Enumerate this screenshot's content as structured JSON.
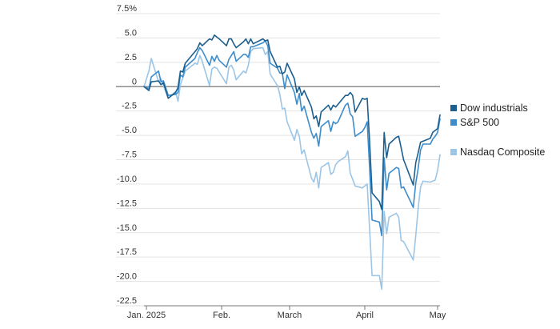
{
  "chart_data": {
    "type": "line",
    "ylim": [
      -22.5,
      7.5
    ],
    "y_ticks": [
      {
        "value": 7.5,
        "label": "7.5%"
      },
      {
        "value": 5.0,
        "label": "5.0"
      },
      {
        "value": 2.5,
        "label": "2.5"
      },
      {
        "value": 0,
        "label": "0"
      },
      {
        "value": -2.5,
        "label": "-2.5"
      },
      {
        "value": -5.0,
        "label": "-5.0"
      },
      {
        "value": -7.5,
        "label": "-7.5"
      },
      {
        "value": -10.0,
        "label": "-10.0"
      },
      {
        "value": -12.5,
        "label": "-12.5"
      },
      {
        "value": -15.0,
        "label": "-15.0"
      },
      {
        "value": -17.5,
        "label": "-17.5"
      },
      {
        "value": -20.0,
        "label": "-20.0"
      },
      {
        "value": -22.5,
        "label": "-22.5"
      }
    ],
    "x_range": [
      "2024-12-31",
      "2025-05-02"
    ],
    "x_ticks": [
      {
        "date": "2025-01-01",
        "label": "Jan. 2025"
      },
      {
        "date": "2025-02-01",
        "label": "Feb."
      },
      {
        "date": "2025-03-01",
        "label": "March"
      },
      {
        "date": "2025-04-01",
        "label": "April"
      },
      {
        "date": "2025-05-01",
        "label": "May"
      }
    ],
    "grid": "horizontal",
    "zero_line": true,
    "legend_position": "right",
    "series": [
      {
        "name": "Dow industrials",
        "color": "#1c5f8e",
        "points": [
          [
            "2024-12-31",
            0
          ],
          [
            "2025-01-02",
            -0.4
          ],
          [
            "2025-01-03",
            0.5
          ],
          [
            "2025-01-06",
            0.6
          ],
          [
            "2025-01-07",
            0.2
          ],
          [
            "2025-01-08",
            0.4
          ],
          [
            "2025-01-10",
            -1.2
          ],
          [
            "2025-01-13",
            -0.6
          ],
          [
            "2025-01-14",
            -0.1
          ],
          [
            "2025-01-15",
            1.6
          ],
          [
            "2025-01-16",
            1.5
          ],
          [
            "2025-01-17",
            2.4
          ],
          [
            "2025-01-21",
            3.6
          ],
          [
            "2025-01-22",
            3.9
          ],
          [
            "2025-01-23",
            4.5
          ],
          [
            "2025-01-24",
            4.2
          ],
          [
            "2025-01-27",
            4.9
          ],
          [
            "2025-01-28",
            4.8
          ],
          [
            "2025-01-29",
            5.3
          ],
          [
            "2025-01-30",
            5.1
          ],
          [
            "2025-01-31",
            4.9
          ],
          [
            "2025-02-03",
            4.2
          ],
          [
            "2025-02-04",
            4.9
          ],
          [
            "2025-02-05",
            4.9
          ],
          [
            "2025-02-06",
            4.4
          ],
          [
            "2025-02-07",
            4.0
          ],
          [
            "2025-02-10",
            4.6
          ],
          [
            "2025-02-11",
            4.9
          ],
          [
            "2025-02-12",
            4.4
          ],
          [
            "2025-02-13",
            4.9
          ],
          [
            "2025-02-14",
            4.4
          ],
          [
            "2025-02-18",
            4.9
          ],
          [
            "2025-02-19",
            4.7
          ],
          [
            "2025-02-20",
            4.8
          ],
          [
            "2025-02-21",
            3.6
          ],
          [
            "2025-02-24",
            2.0
          ],
          [
            "2025-02-25",
            2.1
          ],
          [
            "2025-02-26",
            1.3
          ],
          [
            "2025-02-27",
            1.5
          ],
          [
            "2025-02-28",
            2.4
          ],
          [
            "2025-03-03",
            0.8
          ],
          [
            "2025-03-04",
            -0.6
          ],
          [
            "2025-03-05",
            0.0
          ],
          [
            "2025-03-06",
            -0.9
          ],
          [
            "2025-03-07",
            -0.4
          ],
          [
            "2025-03-10",
            -2.1
          ],
          [
            "2025-03-11",
            -3.3
          ],
          [
            "2025-03-12",
            -3.0
          ],
          [
            "2025-03-13",
            -4.1
          ],
          [
            "2025-03-14",
            -2.6
          ],
          [
            "2025-03-17",
            -1.9
          ],
          [
            "2025-03-18",
            -2.4
          ],
          [
            "2025-03-19",
            -1.9
          ],
          [
            "2025-03-20",
            -2.1
          ],
          [
            "2025-03-21",
            -1.8
          ],
          [
            "2025-03-24",
            -0.9
          ],
          [
            "2025-03-25",
            -0.9
          ],
          [
            "2025-03-26",
            -0.6
          ],
          [
            "2025-03-27",
            -0.9
          ],
          [
            "2025-03-28",
            -2.6
          ],
          [
            "2025-03-31",
            -1.2
          ],
          [
            "2025-04-01",
            -1.3
          ],
          [
            "2025-04-02",
            -1.2
          ],
          [
            "2025-04-03",
            -5.6
          ],
          [
            "2025-04-04",
            -10.9
          ],
          [
            "2025-04-07",
            -11.8
          ],
          [
            "2025-04-08",
            -12.6
          ],
          [
            "2025-04-09",
            -4.7
          ],
          [
            "2025-04-10",
            -7.3
          ],
          [
            "2025-04-11",
            -5.9
          ],
          [
            "2025-04-14",
            -5.2
          ],
          [
            "2025-04-15",
            -5.1
          ],
          [
            "2025-04-16",
            -6.3
          ],
          [
            "2025-04-17",
            -7.5
          ],
          [
            "2025-04-21",
            -10.1
          ],
          [
            "2025-04-22",
            -7.8
          ],
          [
            "2025-04-23",
            -6.8
          ],
          [
            "2025-04-24",
            -5.7
          ],
          [
            "2025-04-25",
            -5.6
          ],
          [
            "2025-04-28",
            -5.3
          ],
          [
            "2025-04-29",
            -4.7
          ],
          [
            "2025-04-30",
            -4.5
          ],
          [
            "2025-05-01",
            -4.3
          ],
          [
            "2025-05-02",
            -2.9
          ]
        ]
      },
      {
        "name": "S&P 500",
        "color": "#3d8ccb",
        "points": [
          [
            "2024-12-31",
            0
          ],
          [
            "2025-01-02",
            -0.2
          ],
          [
            "2025-01-03",
            1.0
          ],
          [
            "2025-01-06",
            1.6
          ],
          [
            "2025-01-07",
            0.5
          ],
          [
            "2025-01-08",
            0.6
          ],
          [
            "2025-01-10",
            -0.9
          ],
          [
            "2025-01-13",
            -0.8
          ],
          [
            "2025-01-14",
            -0.6
          ],
          [
            "2025-01-15",
            1.2
          ],
          [
            "2025-01-16",
            1.0
          ],
          [
            "2025-01-17",
            2.0
          ],
          [
            "2025-01-21",
            2.9
          ],
          [
            "2025-01-22",
            3.5
          ],
          [
            "2025-01-23",
            4.0
          ],
          [
            "2025-01-24",
            3.7
          ],
          [
            "2025-01-27",
            2.2
          ],
          [
            "2025-01-28",
            3.1
          ],
          [
            "2025-01-29",
            2.6
          ],
          [
            "2025-01-30",
            3.2
          ],
          [
            "2025-01-31",
            2.7
          ],
          [
            "2025-02-03",
            2.0
          ],
          [
            "2025-02-04",
            2.8
          ],
          [
            "2025-02-05",
            3.2
          ],
          [
            "2025-02-06",
            3.6
          ],
          [
            "2025-02-07",
            2.6
          ],
          [
            "2025-02-10",
            3.3
          ],
          [
            "2025-02-11",
            3.3
          ],
          [
            "2025-02-12",
            3.0
          ],
          [
            "2025-02-13",
            4.1
          ],
          [
            "2025-02-14",
            4.1
          ],
          [
            "2025-02-18",
            4.5
          ],
          [
            "2025-02-19",
            4.7
          ],
          [
            "2025-02-20",
            4.2
          ],
          [
            "2025-02-21",
            2.4
          ],
          [
            "2025-02-24",
            1.9
          ],
          [
            "2025-02-25",
            1.4
          ],
          [
            "2025-02-26",
            1.4
          ],
          [
            "2025-02-27",
            -0.2
          ],
          [
            "2025-02-28",
            1.2
          ],
          [
            "2025-03-03",
            -0.6
          ],
          [
            "2025-03-04",
            -1.8
          ],
          [
            "2025-03-05",
            -0.7
          ],
          [
            "2025-03-06",
            -2.5
          ],
          [
            "2025-03-07",
            -2.0
          ],
          [
            "2025-03-10",
            -4.7
          ],
          [
            "2025-03-11",
            -5.3
          ],
          [
            "2025-03-12",
            -4.8
          ],
          [
            "2025-03-13",
            -6.1
          ],
          [
            "2025-03-14",
            -4.1
          ],
          [
            "2025-03-17",
            -3.5
          ],
          [
            "2025-03-18",
            -4.6
          ],
          [
            "2025-03-19",
            -3.6
          ],
          [
            "2025-03-20",
            -3.8
          ],
          [
            "2025-03-21",
            -3.6
          ],
          [
            "2025-03-24",
            -1.9
          ],
          [
            "2025-03-25",
            -1.7
          ],
          [
            "2025-03-26",
            -2.8
          ],
          [
            "2025-03-27",
            -3.1
          ],
          [
            "2025-03-28",
            -5.1
          ],
          [
            "2025-03-31",
            -4.6
          ],
          [
            "2025-04-01",
            -4.2
          ],
          [
            "2025-04-02",
            -3.6
          ],
          [
            "2025-04-03",
            -8.4
          ],
          [
            "2025-04-04",
            -13.7
          ],
          [
            "2025-04-07",
            -13.9
          ],
          [
            "2025-04-08",
            -15.3
          ],
          [
            "2025-04-09",
            -7.3
          ],
          [
            "2025-04-10",
            -10.6
          ],
          [
            "2025-04-11",
            -8.9
          ],
          [
            "2025-04-14",
            -8.3
          ],
          [
            "2025-04-15",
            -8.4
          ],
          [
            "2025-04-16",
            -10.4
          ],
          [
            "2025-04-17",
            -10.3
          ],
          [
            "2025-04-21",
            -12.4
          ],
          [
            "2025-04-22",
            -9.9
          ],
          [
            "2025-04-23",
            -8.4
          ],
          [
            "2025-04-24",
            -6.5
          ],
          [
            "2025-04-25",
            -5.9
          ],
          [
            "2025-04-28",
            -5.9
          ],
          [
            "2025-04-29",
            -5.4
          ],
          [
            "2025-04-30",
            -5.1
          ],
          [
            "2025-05-01",
            -4.7
          ],
          [
            "2025-05-02",
            -3.3
          ]
        ]
      },
      {
        "name": "Nasdaq Composite",
        "color": "#9cc5e6",
        "points": [
          [
            "2024-12-31",
            0
          ],
          [
            "2025-01-02",
            1.6
          ],
          [
            "2025-01-03",
            2.9
          ],
          [
            "2025-01-06",
            0.5
          ],
          [
            "2025-01-07",
            0.8
          ],
          [
            "2025-01-08",
            0.1
          ],
          [
            "2025-01-10",
            -1.2
          ],
          [
            "2025-01-13",
            -0.5
          ],
          [
            "2025-01-14",
            -1.5
          ],
          [
            "2025-01-15",
            0.2
          ],
          [
            "2025-01-16",
            0.9
          ],
          [
            "2025-01-17",
            1.6
          ],
          [
            "2025-01-21",
            2.4
          ],
          [
            "2025-01-22",
            2.3
          ],
          [
            "2025-01-23",
            3.2
          ],
          [
            "2025-01-24",
            2.6
          ],
          [
            "2025-01-27",
            0.1
          ],
          [
            "2025-01-28",
            1.8
          ],
          [
            "2025-01-29",
            2.0
          ],
          [
            "2025-01-30",
            1.9
          ],
          [
            "2025-01-31",
            1.5
          ],
          [
            "2025-02-03",
            0.3
          ],
          [
            "2025-02-04",
            2.0
          ],
          [
            "2025-02-05",
            2.2
          ],
          [
            "2025-02-06",
            1.7
          ],
          [
            "2025-02-07",
            0.7
          ],
          [
            "2025-02-10",
            1.6
          ],
          [
            "2025-02-11",
            1.4
          ],
          [
            "2025-02-12",
            2.2
          ],
          [
            "2025-02-13",
            3.6
          ],
          [
            "2025-02-14",
            3.9
          ],
          [
            "2025-02-18",
            4.0
          ],
          [
            "2025-02-19",
            3.3
          ],
          [
            "2025-02-20",
            3.6
          ],
          [
            "2025-02-21",
            1.3
          ],
          [
            "2025-02-24",
            0.1
          ],
          [
            "2025-02-25",
            -0.8
          ],
          [
            "2025-02-26",
            -2.3
          ],
          [
            "2025-02-27",
            -2.2
          ],
          [
            "2025-02-28",
            -3.6
          ],
          [
            "2025-03-03",
            -5.5
          ],
          [
            "2025-03-04",
            -4.4
          ],
          [
            "2025-03-05",
            -5.1
          ],
          [
            "2025-03-06",
            -6.9
          ],
          [
            "2025-03-07",
            -6.5
          ],
          [
            "2025-03-10",
            -9.4
          ],
          [
            "2025-03-11",
            -9.8
          ],
          [
            "2025-03-12",
            -8.8
          ],
          [
            "2025-03-13",
            -10.4
          ],
          [
            "2025-03-14",
            -8.3
          ],
          [
            "2025-03-17",
            -7.8
          ],
          [
            "2025-03-18",
            -9.0
          ],
          [
            "2025-03-19",
            -8.8
          ],
          [
            "2025-03-20",
            -8.0
          ],
          [
            "2025-03-21",
            -7.7
          ],
          [
            "2025-03-24",
            -7.2
          ],
          [
            "2025-03-25",
            -6.6
          ],
          [
            "2025-03-26",
            -8.9
          ],
          [
            "2025-03-27",
            -9.5
          ],
          [
            "2025-03-28",
            -10.2
          ],
          [
            "2025-03-31",
            -10.4
          ],
          [
            "2025-04-01",
            -10.2
          ],
          [
            "2025-04-02",
            -10.0
          ],
          [
            "2025-04-03",
            -14.6
          ],
          [
            "2025-04-04",
            -19.4
          ],
          [
            "2025-04-07",
            -19.4
          ],
          [
            "2025-04-08",
            -20.8
          ],
          [
            "2025-04-09",
            -12.8
          ],
          [
            "2025-04-10",
            -15.1
          ],
          [
            "2025-04-11",
            -13.4
          ],
          [
            "2025-04-14",
            -13.0
          ],
          [
            "2025-04-15",
            -13.4
          ],
          [
            "2025-04-16",
            -15.8
          ],
          [
            "2025-04-17",
            -15.9
          ],
          [
            "2025-04-21",
            -17.8
          ],
          [
            "2025-04-22",
            -15.3
          ],
          [
            "2025-04-23",
            -12.5
          ],
          [
            "2025-04-24",
            -10.3
          ],
          [
            "2025-04-25",
            -9.7
          ],
          [
            "2025-04-28",
            -9.8
          ],
          [
            "2025-04-29",
            -9.7
          ],
          [
            "2025-04-30",
            -9.6
          ],
          [
            "2025-05-01",
            -8.6
          ],
          [
            "2025-05-02",
            -7.0
          ]
        ]
      }
    ]
  }
}
